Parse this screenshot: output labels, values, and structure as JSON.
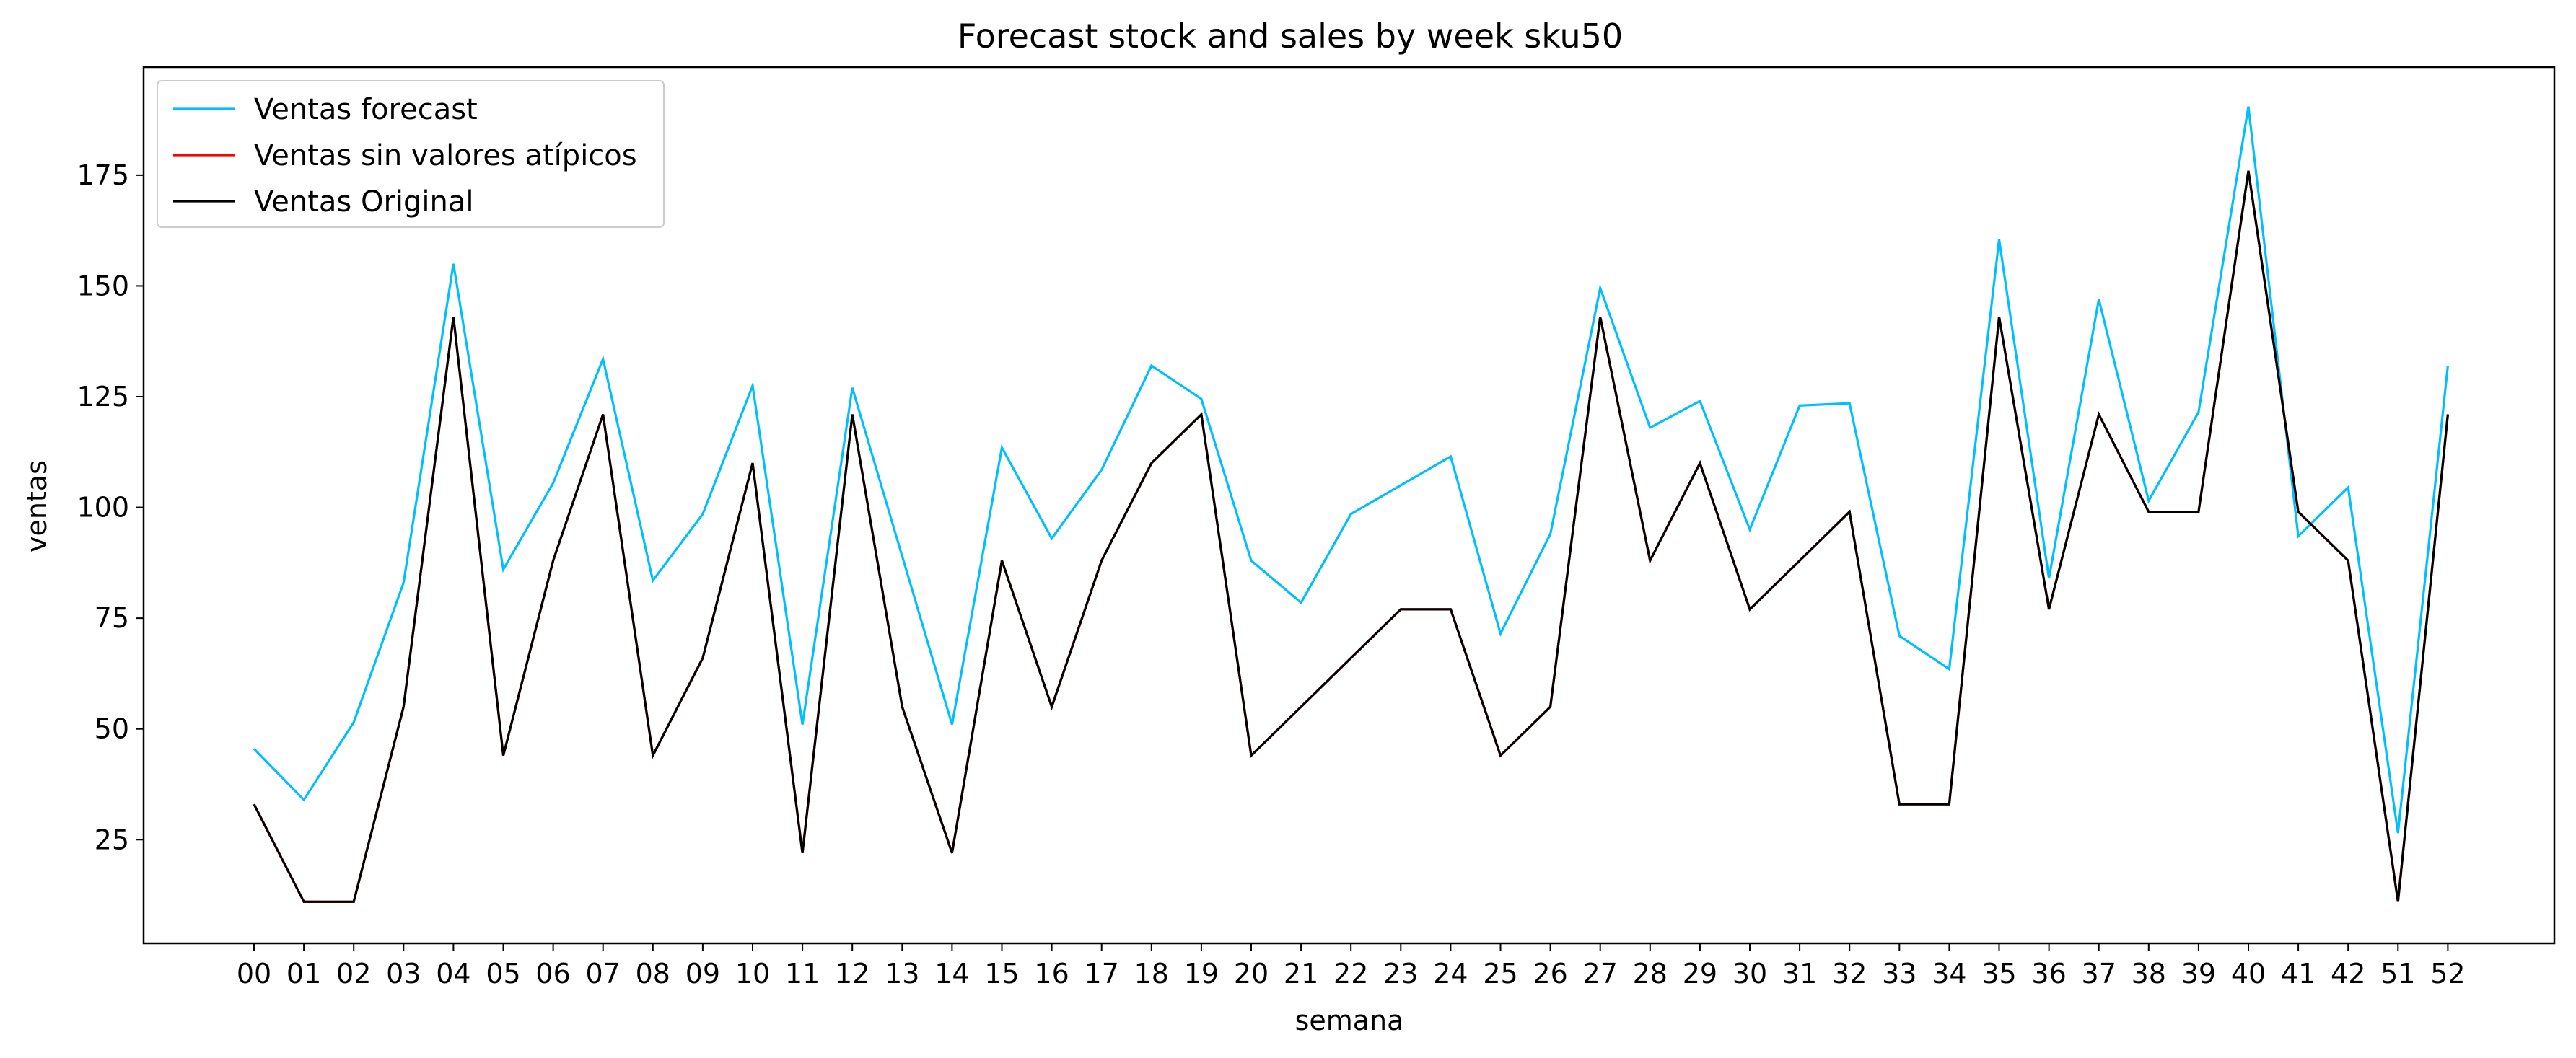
{
  "chart_data": {
    "type": "line",
    "title": "Forecast stock and sales by week sku50",
    "xlabel": "semana",
    "ylabel": "ventas",
    "categories": [
      "00",
      "01",
      "02",
      "03",
      "04",
      "05",
      "06",
      "07",
      "08",
      "09",
      "10",
      "11",
      "12",
      "13",
      "14",
      "15",
      "16",
      "17",
      "18",
      "19",
      "20",
      "21",
      "22",
      "23",
      "24",
      "25",
      "26",
      "27",
      "28",
      "29",
      "30",
      "31",
      "32",
      "33",
      "34",
      "35",
      "36",
      "37",
      "38",
      "39",
      "40",
      "41",
      "42",
      "51",
      "52"
    ],
    "yticks": [
      25,
      50,
      75,
      100,
      125,
      150,
      175
    ],
    "ylim": [
      1.6,
      199.4
    ],
    "grid": false,
    "legend_position": "upper-left",
    "series": [
      {
        "name": "Ventas forecast",
        "color": "#00bfff",
        "values": [
          45.5,
          34,
          51.5,
          83,
          155,
          86,
          105.5,
          133.5,
          83.5,
          98.5,
          127.5,
          51,
          127,
          89,
          51,
          113.5,
          93,
          108.5,
          132,
          124.5,
          88,
          78.5,
          98.5,
          105,
          111.5,
          71.5,
          94,
          149.5,
          118,
          124,
          95,
          123,
          123.5,
          71,
          63.5,
          160.5,
          84,
          147,
          101.5,
          121.5,
          190.5,
          93.5,
          104.5,
          26.5,
          132
        ]
      },
      {
        "name": "Ventas sin valores atípicos",
        "color": "#ff0000",
        "values": [
          33,
          11,
          11,
          55,
          143,
          44,
          88,
          121,
          44,
          66,
          110,
          22,
          121,
          55,
          22,
          88,
          55,
          88,
          110,
          121,
          44,
          55,
          66,
          77,
          77,
          44,
          55,
          143,
          88,
          110,
          77,
          88,
          99,
          33,
          33,
          143,
          77,
          121,
          99,
          99,
          176,
          99,
          88,
          11,
          121
        ]
      },
      {
        "name": "Ventas Original",
        "color": "#000000",
        "values": [
          33,
          11,
          11,
          55,
          143,
          44,
          88,
          121,
          44,
          66,
          110,
          22,
          121,
          55,
          22,
          88,
          55,
          88,
          110,
          121,
          44,
          55,
          66,
          77,
          77,
          44,
          55,
          143,
          88,
          110,
          77,
          88,
          99,
          33,
          33,
          143,
          77,
          121,
          99,
          99,
          176,
          99,
          88,
          11,
          121
        ]
      }
    ]
  }
}
